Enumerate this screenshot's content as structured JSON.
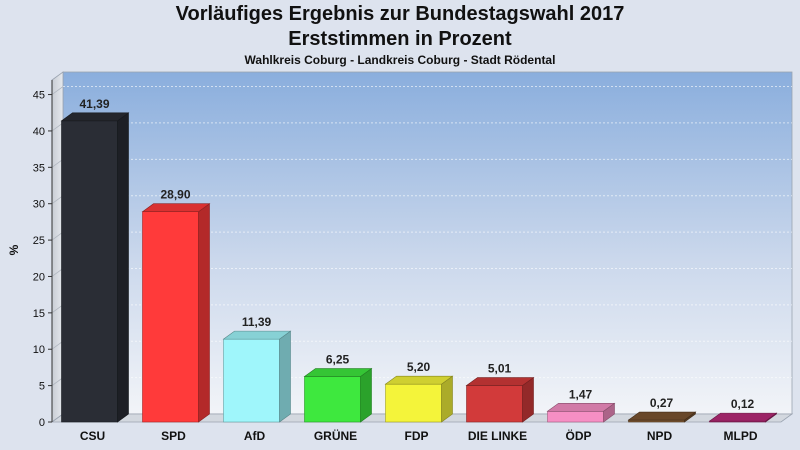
{
  "chart_data": {
    "type": "bar",
    "title": "Vorläufiges Ergebnis zur Bundestagswahl 2017",
    "title_line2": "Erststimmen in Prozent",
    "subtitle": "Wahlkreis Coburg - Landkreis Coburg - Stadt Rödental",
    "ylabel": "%",
    "xlabel": "",
    "ylim": [
      0,
      47
    ],
    "yticks": [
      0,
      5,
      10,
      15,
      20,
      25,
      30,
      35,
      40,
      45
    ],
    "grid": true,
    "categories": [
      "CSU",
      "SPD",
      "AfD",
      "GRÜNE",
      "FDP",
      "DIE LINKE",
      "ÖDP",
      "NPD",
      "MLPD"
    ],
    "values": [
      41.39,
      28.9,
      11.39,
      6.25,
      5.2,
      5.01,
      1.47,
      0.27,
      0.12
    ],
    "value_labels": [
      "41,39",
      "28,90",
      "11,39",
      "6,25",
      "5,20",
      "5,01",
      "1,47",
      "0,27",
      "0,12"
    ],
    "colors": [
      "#2a2d35",
      "#ff3a3a",
      "#9ff6fb",
      "#3ee83e",
      "#f4f43a",
      "#d23a3a",
      "#f68fc4",
      "#7a5430",
      "#b82a78"
    ]
  }
}
